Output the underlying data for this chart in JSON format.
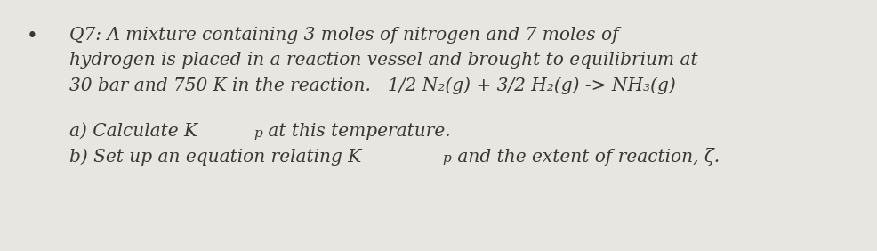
{
  "background_color": "#e8e6e0",
  "bullet": "•",
  "line1": "Q7: A mixture containing 3 moles of nitrogen and 7 moles of",
  "line2": "hydrogen is placed in a reaction vessel and brought to equilibrium at",
  "line3": "30 bar and 750 K in the reaction.   1/2 N₂(g) + 3/2 H₂(g) -> NH₃(g)",
  "line_a_pre": "a) Calculate K",
  "line_a_sub": "p",
  "line_a_post": " at this temperature.",
  "line_b_pre": "b) Set up an equation relating K",
  "line_b_sub": "p",
  "line_b_post": " and the extent of reaction, ζ.",
  "font_size": 14.5,
  "font_size_sub": 11.0,
  "text_color": "#3a3835",
  "font_family": "DejaVu Serif"
}
